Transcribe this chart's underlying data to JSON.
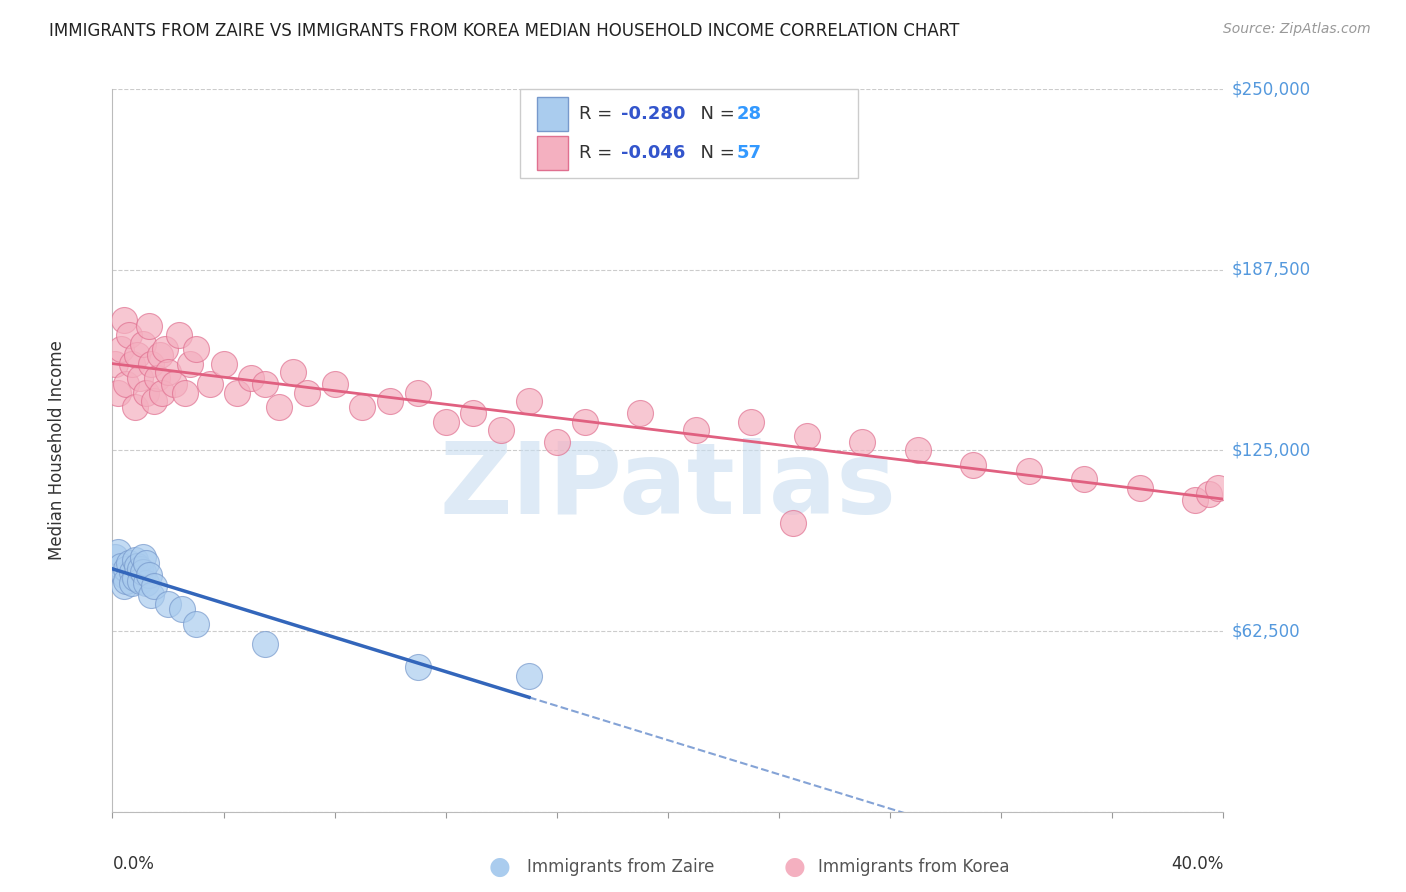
{
  "title": "IMMIGRANTS FROM ZAIRE VS IMMIGRANTS FROM KOREA MEDIAN HOUSEHOLD INCOME CORRELATION CHART",
  "source": "Source: ZipAtlas.com",
  "ylabel": "Median Household Income",
  "yticks": [
    0,
    62500,
    125000,
    187500,
    250000
  ],
  "ytick_labels": [
    "",
    "$62,500",
    "$125,000",
    "$187,500",
    "$250,000"
  ],
  "xlim": [
    0.0,
    0.4
  ],
  "ylim": [
    0,
    250000
  ],
  "watermark": "ZIPatlas",
  "watermark_color": "#c8ddf0",
  "zaire_color": "#aaccee",
  "korea_color": "#f4b0c0",
  "zaire_edge": "#7799cc",
  "korea_edge": "#e07090",
  "zaire_line_color": "#3366bb",
  "korea_line_color": "#e06080",
  "background_color": "#ffffff",
  "grid_color": "#cccccc",
  "zaire_x": [
    0.001,
    0.002,
    0.003,
    0.004,
    0.004,
    0.005,
    0.005,
    0.006,
    0.007,
    0.007,
    0.008,
    0.008,
    0.009,
    0.01,
    0.01,
    0.011,
    0.011,
    0.012,
    0.012,
    0.013,
    0.014,
    0.015,
    0.02,
    0.025,
    0.03,
    0.055,
    0.11,
    0.15
  ],
  "zaire_y": [
    88000,
    90000,
    85000,
    82000,
    78000,
    84000,
    80000,
    86000,
    83000,
    79000,
    87000,
    81000,
    85000,
    84000,
    80000,
    88000,
    83000,
    79000,
    86000,
    82000,
    75000,
    78000,
    72000,
    70000,
    65000,
    58000,
    50000,
    47000
  ],
  "korea_x": [
    0.001,
    0.002,
    0.003,
    0.004,
    0.005,
    0.006,
    0.007,
    0.008,
    0.009,
    0.01,
    0.011,
    0.012,
    0.013,
    0.014,
    0.015,
    0.016,
    0.017,
    0.018,
    0.019,
    0.02,
    0.022,
    0.024,
    0.026,
    0.028,
    0.03,
    0.035,
    0.04,
    0.045,
    0.05,
    0.055,
    0.06,
    0.065,
    0.07,
    0.08,
    0.09,
    0.1,
    0.11,
    0.13,
    0.15,
    0.17,
    0.19,
    0.21,
    0.23,
    0.25,
    0.27,
    0.29,
    0.31,
    0.33,
    0.35,
    0.37,
    0.39,
    0.395,
    0.398,
    0.245,
    0.12,
    0.14,
    0.16
  ],
  "korea_y": [
    155000,
    145000,
    160000,
    170000,
    148000,
    165000,
    155000,
    140000,
    158000,
    150000,
    162000,
    145000,
    168000,
    155000,
    142000,
    150000,
    158000,
    145000,
    160000,
    152000,
    148000,
    165000,
    145000,
    155000,
    160000,
    148000,
    155000,
    145000,
    150000,
    148000,
    140000,
    152000,
    145000,
    148000,
    140000,
    142000,
    145000,
    138000,
    142000,
    135000,
    138000,
    132000,
    135000,
    130000,
    128000,
    125000,
    120000,
    118000,
    115000,
    112000,
    108000,
    110000,
    112000,
    100000,
    135000,
    132000,
    128000
  ]
}
